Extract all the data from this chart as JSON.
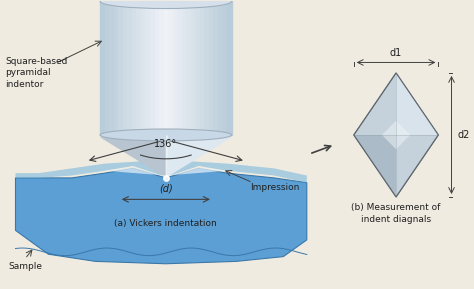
{
  "bg_color": "#f0ebe0",
  "title": "",
  "annotations": {
    "square_based_label": "Square-based\npyramidal\nindentor",
    "angle_label": "136°",
    "d_label": "(d)",
    "indentation_label": "(a) Vickers indentation",
    "impression_label": "Impression",
    "sample_label": "Sample",
    "d1_label": "d1",
    "d2_label": "d2",
    "measurement_label": "(b) Measurement of\nindent diagnals"
  },
  "colors": {
    "bg_color": "#f0ebe0",
    "cylinder_top": "#d0dce8",
    "cylinder_mid": "#e8eef4",
    "cylinder_highlight": "#f5f8fa",
    "pyramid_light": "#e8eef4",
    "pyramid_dark": "#b0b8c0",
    "sample_blue": "#5090c8",
    "sample_light": "#7ab0d8",
    "indent_white": "#f0f4f8",
    "diamond_fill": "#c8d0d8",
    "diamond_highlight": "#f0f4f8",
    "arrow_color": "#404040",
    "text_color": "#202020",
    "line_color": "#404040"
  }
}
